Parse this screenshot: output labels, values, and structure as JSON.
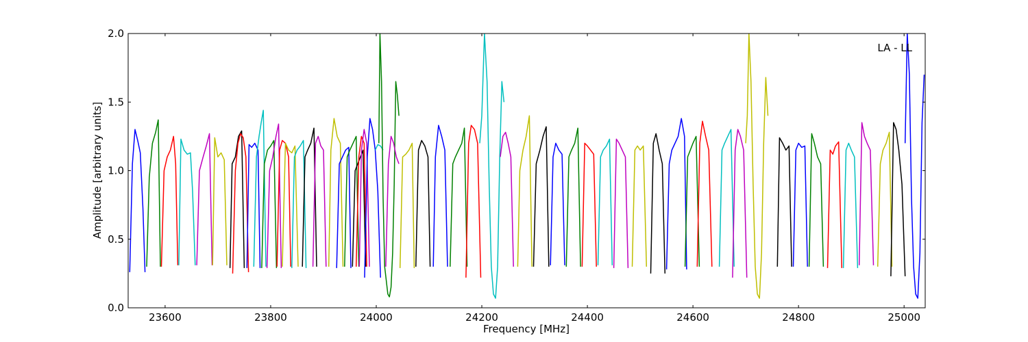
{
  "chart_data": {
    "type": "line",
    "title": "",
    "annotation": "LA - LL",
    "xlabel": "Frequency [MHz]",
    "ylabel": "Amplitude [arbitrary units]",
    "xlim": [
      23530,
      25040
    ],
    "ylim": [
      0.0,
      2.0
    ],
    "xticks": [
      23600,
      23800,
      24000,
      24200,
      24400,
      24600,
      24800,
      25000
    ],
    "yticks": [
      0.0,
      0.5,
      1.0,
      1.5,
      2.0
    ],
    "ytick_labels": [
      "0.0",
      "0.5",
      "1.0",
      "1.5",
      "2.0"
    ],
    "grid": false,
    "legend": "none",
    "color_cycle": [
      "#0000ff",
      "#008000",
      "#ff0000",
      "#00bfbf",
      "#bf00bf",
      "#bfbf00",
      "#000000"
    ],
    "series": [
      {
        "color": "#0000ff",
        "x": [
          23533,
          23538,
          23543,
          23548,
          23553,
          23558,
          23562
        ],
        "y": [
          0.26,
          1.05,
          1.3,
          1.22,
          1.13,
          0.72,
          0.26
        ]
      },
      {
        "color": "#008000",
        "x": [
          23565,
          23570,
          23576,
          23582,
          23587,
          23591
        ],
        "y": [
          0.3,
          0.95,
          1.2,
          1.28,
          1.37,
          0.3
        ]
      },
      {
        "color": "#ff0000",
        "x": [
          23593,
          23598,
          23604,
          23610,
          23616,
          23620,
          23624
        ],
        "y": [
          0.3,
          1.0,
          1.1,
          1.15,
          1.25,
          1.05,
          0.31
        ]
      },
      {
        "color": "#00bfbf",
        "x": [
          23626,
          23630,
          23636,
          23642,
          23648,
          23652,
          23657
        ],
        "y": [
          0.31,
          1.23,
          1.15,
          1.12,
          1.13,
          0.85,
          0.31
        ]
      },
      {
        "color": "#bf00bf",
        "x": [
          23660,
          23665,
          23672,
          23678,
          23684,
          23689
        ],
        "y": [
          0.31,
          1.0,
          1.1,
          1.18,
          1.27,
          0.31
        ]
      },
      {
        "color": "#bfbf00",
        "x": [
          23690,
          23694,
          23700,
          23706,
          23712,
          23717
        ],
        "y": [
          0.31,
          1.24,
          1.1,
          1.13,
          1.08,
          0.31
        ]
      },
      {
        "color": "#000000",
        "x": [
          23723,
          23727,
          23733,
          23739,
          23745,
          23750
        ],
        "y": [
          0.29,
          1.05,
          1.1,
          1.25,
          1.29,
          0.29
        ]
      },
      {
        "color": "#ff0000",
        "x": [
          23728,
          23733,
          23738,
          23743,
          23748,
          23753,
          23758
        ],
        "y": [
          0.25,
          1.0,
          1.2,
          1.27,
          1.24,
          1.1,
          0.26
        ]
      },
      {
        "color": "#0000ff",
        "x": [
          23755,
          23759,
          23764,
          23770,
          23776,
          23780
        ],
        "y": [
          0.29,
          1.19,
          1.17,
          1.2,
          1.15,
          0.29
        ]
      },
      {
        "color": "#00bfbf",
        "x": [
          23768,
          23773,
          23778,
          23782,
          23786,
          23791
        ],
        "y": [
          0.3,
          1.1,
          1.25,
          1.35,
          1.44,
          0.3
        ]
      },
      {
        "color": "#008000",
        "x": [
          23783,
          23788,
          23794,
          23800,
          23806,
          23811
        ],
        "y": [
          0.29,
          1.05,
          1.15,
          1.18,
          1.22,
          0.29
        ]
      },
      {
        "color": "#bf00bf",
        "x": [
          23793,
          23798,
          23804,
          23810,
          23815,
          23820
        ],
        "y": [
          0.29,
          1.0,
          1.1,
          1.25,
          1.34,
          0.29
        ]
      },
      {
        "color": "#ff0000",
        "x": [
          23812,
          23817,
          23822,
          23828,
          23834,
          23838
        ],
        "y": [
          0.3,
          1.15,
          1.22,
          1.2,
          1.1,
          0.3
        ]
      },
      {
        "color": "#bfbf00",
        "x": [
          23822,
          23828,
          23834,
          23840,
          23846,
          23852
        ],
        "y": [
          0.3,
          1.2,
          1.15,
          1.13,
          1.18,
          0.3
        ]
      },
      {
        "color": "#00bfbf",
        "x": [
          23840,
          23845,
          23850,
          23856,
          23862,
          23867
        ],
        "y": [
          0.29,
          1.1,
          1.15,
          1.18,
          1.22,
          0.29
        ]
      },
      {
        "color": "#000000",
        "x": [
          23860,
          23865,
          23870,
          23876,
          23882,
          23887
        ],
        "y": [
          0.3,
          1.1,
          1.15,
          1.2,
          1.31,
          0.3
        ]
      },
      {
        "color": "#bf00bf",
        "x": [
          23880,
          23885,
          23890,
          23895,
          23900,
          23905
        ],
        "y": [
          0.3,
          1.2,
          1.25,
          1.18,
          1.15,
          0.3
        ]
      },
      {
        "color": "#bfbf00",
        "x": [
          23910,
          23914,
          23920,
          23926,
          23932,
          23937
        ],
        "y": [
          0.3,
          1.15,
          1.38,
          1.25,
          1.2,
          0.3
        ]
      },
      {
        "color": "#0000ff",
        "x": [
          23925,
          23930,
          23936,
          23942,
          23948,
          23952
        ],
        "y": [
          0.29,
          1.05,
          1.1,
          1.15,
          1.17,
          0.29
        ]
      },
      {
        "color": "#008000",
        "x": [
          23940,
          23945,
          23950,
          23956,
          23962,
          23967
        ],
        "y": [
          0.3,
          1.1,
          1.15,
          1.2,
          1.25,
          0.3
        ]
      },
      {
        "color": "#000000",
        "x": [
          23955,
          23960,
          23965,
          23970,
          23975,
          23980
        ],
        "y": [
          0.3,
          1.0,
          1.05,
          1.1,
          1.15,
          0.3
        ]
      },
      {
        "color": "#ff0000",
        "x": [
          23962,
          23967,
          23972,
          23977,
          23982
        ],
        "y": [
          0.3,
          1.1,
          1.25,
          1.2,
          0.3
        ]
      },
      {
        "color": "#bf00bf",
        "x": [
          23968,
          23972,
          23977,
          23982,
          23987
        ],
        "y": [
          0.3,
          1.15,
          1.3,
          1.2,
          0.3
        ]
      },
      {
        "color": "#0000ff",
        "x": [
          23978,
          23983,
          23988,
          23993,
          23998,
          24003,
          24008
        ],
        "y": [
          0.22,
          1.1,
          1.38,
          1.3,
          1.15,
          0.85,
          0.22
        ]
      },
      {
        "color": "#00bfbf",
        "x": [
          23998,
          24003,
          24008,
          24013
        ],
        "y": [
          1.15,
          1.19,
          1.18,
          1.15
        ]
      },
      {
        "color": "#008000",
        "x": [
          24005,
          24007,
          24010,
          24013,
          24016,
          24019,
          24022,
          24025,
          24028,
          24031,
          24034,
          24037,
          24040,
          24043
        ],
        "y": [
          1.2,
          2.0,
          1.65,
          0.8,
          0.3,
          0.2,
          0.1,
          0.08,
          0.15,
          0.4,
          0.9,
          1.65,
          1.55,
          1.4
        ]
      },
      {
        "color": "#bf00bf",
        "x": [
          24018,
          24023,
          24028,
          24033,
          24038,
          24043
        ],
        "y": [
          0.3,
          1.05,
          1.25,
          1.2,
          1.1,
          1.05
        ]
      },
      {
        "color": "#bfbf00",
        "x": [
          24045,
          24050,
          24056,
          24062,
          24068,
          24072
        ],
        "y": [
          0.29,
          1.1,
          1.12,
          1.15,
          1.2,
          0.29
        ]
      },
      {
        "color": "#000000",
        "x": [
          24075,
          24080,
          24086,
          24092,
          24098,
          24102
        ],
        "y": [
          0.3,
          1.15,
          1.22,
          1.18,
          1.1,
          0.3
        ]
      },
      {
        "color": "#0000ff",
        "x": [
          24108,
          24112,
          24118,
          24124,
          24130,
          24135
        ],
        "y": [
          0.3,
          1.1,
          1.33,
          1.25,
          1.15,
          0.3
        ]
      },
      {
        "color": "#008000",
        "x": [
          24140,
          24145,
          24150,
          24156,
          24162,
          24167,
          24172
        ],
        "y": [
          0.3,
          1.05,
          1.1,
          1.15,
          1.2,
          1.31,
          0.3
        ]
      },
      {
        "color": "#ff0000",
        "x": [
          24170,
          24175,
          24180,
          24186,
          24192,
          24198
        ],
        "y": [
          0.22,
          1.2,
          1.33,
          1.3,
          1.2,
          0.22
        ]
      },
      {
        "color": "#00bfbf",
        "x": [
          24196,
          24200,
          24205,
          24210,
          24214,
          24218,
          24222,
          24226,
          24230,
          24234,
          24238,
          24242
        ],
        "y": [
          1.2,
          1.4,
          2.0,
          1.65,
          0.9,
          0.3,
          0.1,
          0.07,
          0.3,
          1.1,
          1.65,
          1.5
        ]
      },
      {
        "color": "#bf00bf",
        "x": [
          24235,
          24240,
          24245,
          24250,
          24255,
          24260
        ],
        "y": [
          1.1,
          1.25,
          1.28,
          1.2,
          1.1,
          0.3
        ]
      },
      {
        "color": "#bfbf00",
        "x": [
          24268,
          24272,
          24278,
          24284,
          24290,
          24295
        ],
        "y": [
          0.3,
          1.0,
          1.15,
          1.25,
          1.4,
          0.3
        ]
      },
      {
        "color": "#000000",
        "x": [
          24298,
          24303,
          24310,
          24316,
          24322,
          24327
        ],
        "y": [
          0.3,
          1.05,
          1.15,
          1.25,
          1.32,
          0.3
        ]
      },
      {
        "color": "#0000ff",
        "x": [
          24330,
          24335,
          24340,
          24346,
          24352,
          24357
        ],
        "y": [
          0.31,
          1.1,
          1.2,
          1.15,
          1.12,
          0.31
        ]
      },
      {
        "color": "#008000",
        "x": [
          24360,
          24365,
          24370,
          24376,
          24382,
          24387
        ],
        "y": [
          0.3,
          1.1,
          1.15,
          1.2,
          1.31,
          0.3
        ]
      },
      {
        "color": "#ff0000",
        "x": [
          24390,
          24395,
          24400,
          24406,
          24412,
          24417
        ],
        "y": [
          0.3,
          1.2,
          1.18,
          1.15,
          1.12,
          0.3
        ]
      },
      {
        "color": "#00bfbf",
        "x": [
          24420,
          24425,
          24430,
          24436,
          24442,
          24447
        ],
        "y": [
          0.31,
          1.1,
          1.15,
          1.18,
          1.23,
          0.31
        ]
      },
      {
        "color": "#bf00bf",
        "x": [
          24450,
          24455,
          24460,
          24466,
          24472,
          24477
        ],
        "y": [
          0.29,
          1.23,
          1.2,
          1.15,
          1.1,
          0.29
        ]
      },
      {
        "color": "#bfbf00",
        "x": [
          24485,
          24490,
          24495,
          24500,
          24506,
          24512
        ],
        "y": [
          0.3,
          1.15,
          1.18,
          1.15,
          1.18,
          0.3
        ]
      },
      {
        "color": "#000000",
        "x": [
          24520,
          24525,
          24530,
          24536,
          24542,
          24547
        ],
        "y": [
          0.25,
          1.2,
          1.27,
          1.15,
          1.05,
          0.25
        ]
      },
      {
        "color": "#0000ff",
        "x": [
          24550,
          24555,
          24560,
          24566,
          24572,
          24578,
          24584,
          24588
        ],
        "y": [
          0.28,
          1.05,
          1.15,
          1.2,
          1.25,
          1.38,
          1.25,
          0.28
        ]
      },
      {
        "color": "#008000",
        "x": [
          24585,
          24590,
          24595,
          24600,
          24606,
          24612
        ],
        "y": [
          0.3,
          1.1,
          1.15,
          1.2,
          1.25,
          0.3
        ]
      },
      {
        "color": "#ff0000",
        "x": [
          24608,
          24613,
          24618,
          24624,
          24630,
          24636
        ],
        "y": [
          0.3,
          1.2,
          1.36,
          1.25,
          1.15,
          0.3
        ]
      },
      {
        "color": "#00bfbf",
        "x": [
          24650,
          24655,
          24660,
          24666,
          24672,
          24678
        ],
        "y": [
          0.3,
          1.15,
          1.2,
          1.25,
          1.3,
          0.3
        ]
      },
      {
        "color": "#bf00bf",
        "x": [
          24675,
          24680,
          24685,
          24690,
          24696,
          24702
        ],
        "y": [
          0.22,
          1.15,
          1.3,
          1.25,
          1.15,
          0.22
        ]
      },
      {
        "color": "#bfbf00",
        "x": [
          24700,
          24703,
          24706,
          24710,
          24714,
          24718,
          24722,
          24726,
          24730,
          24734,
          24738,
          24742
        ],
        "y": [
          1.2,
          1.4,
          2.0,
          1.65,
          0.9,
          0.3,
          0.1,
          0.07,
          0.4,
          1.2,
          1.68,
          1.4
        ]
      },
      {
        "color": "#000000",
        "x": [
          24760,
          24764,
          24770,
          24776,
          24782,
          24787
        ],
        "y": [
          0.3,
          1.24,
          1.2,
          1.15,
          1.18,
          0.3
        ]
      },
      {
        "color": "#0000ff",
        "x": [
          24790,
          24795,
          24800,
          24806,
          24812,
          24817
        ],
        "y": [
          0.3,
          1.15,
          1.2,
          1.17,
          1.18,
          0.3
        ]
      },
      {
        "color": "#008000",
        "x": [
          24820,
          24825,
          24830,
          24836,
          24842,
          24847
        ],
        "y": [
          0.3,
          1.27,
          1.2,
          1.1,
          1.05,
          0.3
        ]
      },
      {
        "color": "#ff0000",
        "x": [
          24855,
          24860,
          24865,
          24870,
          24876,
          24882
        ],
        "y": [
          0.29,
          1.15,
          1.12,
          1.18,
          1.21,
          0.29
        ]
      },
      {
        "color": "#00bfbf",
        "x": [
          24885,
          24890,
          24895,
          24900,
          24906,
          24912
        ],
        "y": [
          0.29,
          1.15,
          1.2,
          1.15,
          1.1,
          0.29
        ]
      },
      {
        "color": "#bf00bf",
        "x": [
          24915,
          24920,
          24925,
          24930,
          24936,
          24942
        ],
        "y": [
          0.31,
          1.35,
          1.25,
          1.2,
          1.15,
          0.31
        ]
      },
      {
        "color": "#bfbf00",
        "x": [
          24950,
          24955,
          24960,
          24966,
          24972,
          24977
        ],
        "y": [
          0.3,
          1.05,
          1.15,
          1.2,
          1.28,
          0.3
        ]
      },
      {
        "color": "#000000",
        "x": [
          24975,
          24980,
          24985,
          24990,
          24996,
          25002
        ],
        "y": [
          0.23,
          1.35,
          1.3,
          1.15,
          0.9,
          0.23
        ]
      },
      {
        "color": "#0000ff",
        "x": [
          25002,
          25006,
          25010,
          25014,
          25018,
          25022,
          25026,
          25030,
          25034,
          25038
        ],
        "y": [
          1.2,
          2.0,
          1.7,
          0.8,
          0.3,
          0.1,
          0.07,
          0.4,
          1.35,
          1.7
        ]
      }
    ]
  }
}
